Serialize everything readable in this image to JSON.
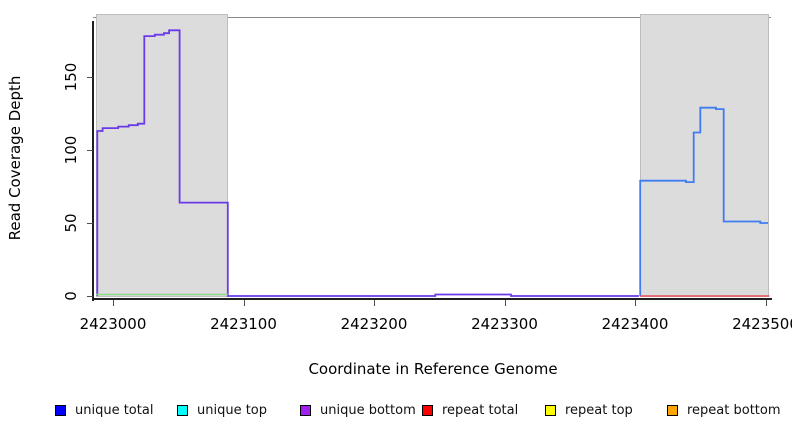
{
  "chart_data": {
    "type": "line",
    "step": true,
    "title": "",
    "xlabel": "Coordinate in Reference Genome",
    "ylabel": "Read Coverage Depth",
    "xlim": [
      2422984,
      2423503
    ],
    "ylim": [
      0,
      191
    ],
    "grid": false,
    "x_ticks": [
      {
        "value": 2423000,
        "label": "2423000"
      },
      {
        "value": 2423100,
        "label": "2423100"
      },
      {
        "value": 2423200,
        "label": "2423200"
      },
      {
        "value": 2423300,
        "label": "2423300"
      },
      {
        "value": 2423400,
        "label": "2423400"
      },
      {
        "value": 2423500,
        "label": "2423500"
      }
    ],
    "y_ticks": [
      {
        "value": 0,
        "label": "0"
      },
      {
        "value": 50,
        "label": "50"
      },
      {
        "value": 100,
        "label": "100"
      },
      {
        "value": 150,
        "label": "150"
      }
    ],
    "shaded_regions": [
      {
        "name": "repeat-region-left",
        "x_start": 2422987,
        "x_end": 2423088
      },
      {
        "name": "repeat-region-right",
        "x_start": 2423404,
        "x_end": 2423503
      }
    ],
    "series": [
      {
        "name": "unique-coverage-left-and-middle",
        "color": "#6A3AE8",
        "width": 1.8,
        "points": [
          [
            2422988,
            0
          ],
          [
            2422988,
            113
          ],
          [
            2422992,
            113
          ],
          [
            2422992,
            115
          ],
          [
            2423004,
            115
          ],
          [
            2423004,
            116
          ],
          [
            2423012,
            116
          ],
          [
            2423012,
            117
          ],
          [
            2423019,
            117
          ],
          [
            2423019,
            118
          ],
          [
            2423024,
            118
          ],
          [
            2423024,
            178
          ],
          [
            2423032,
            178
          ],
          [
            2423032,
            179
          ],
          [
            2423039,
            179
          ],
          [
            2423039,
            180
          ],
          [
            2423043,
            180
          ],
          [
            2423043,
            182
          ],
          [
            2423051,
            182
          ],
          [
            2423051,
            64
          ],
          [
            2423088,
            64
          ],
          [
            2423088,
            0
          ],
          [
            2423247,
            0
          ],
          [
            2423247,
            1
          ],
          [
            2423305,
            1
          ],
          [
            2423305,
            0
          ],
          [
            2423403,
            0
          ]
        ]
      },
      {
        "name": "unique-coverage-right",
        "color": "#3E7CF2",
        "width": 1.8,
        "points": [
          [
            2423404,
            0
          ],
          [
            2423404,
            79
          ],
          [
            2423439,
            79
          ],
          [
            2423439,
            78
          ],
          [
            2423445,
            78
          ],
          [
            2423445,
            112
          ],
          [
            2423450,
            112
          ],
          [
            2423450,
            129
          ],
          [
            2423462,
            129
          ],
          [
            2423462,
            128
          ],
          [
            2423468,
            128
          ],
          [
            2423468,
            51
          ],
          [
            2423496,
            51
          ],
          [
            2423496,
            50
          ],
          [
            2423502,
            50
          ]
        ]
      },
      {
        "name": "repeat-region-left-baseline",
        "color": "#8BD98B",
        "width": 1.4,
        "points": [
          [
            2422987,
            1
          ],
          [
            2423088,
            1
          ]
        ]
      },
      {
        "name": "repeat-region-right-baseline",
        "color": "#EC4F5F",
        "width": 1.4,
        "points": [
          [
            2423404,
            0
          ],
          [
            2423503,
            0
          ]
        ]
      }
    ],
    "legend": {
      "position": "bottom",
      "entries": [
        {
          "label": "unique total",
          "color": "#0000FF"
        },
        {
          "label": "unique top",
          "color": "#00FFFF"
        },
        {
          "label": "unique bottom",
          "color": "#A020F0"
        },
        {
          "label": "repeat total",
          "color": "#FF0000"
        },
        {
          "label": "repeat top",
          "color": "#FFFF00"
        },
        {
          "label": "repeat bottom",
          "color": "#FFA500"
        }
      ]
    }
  }
}
